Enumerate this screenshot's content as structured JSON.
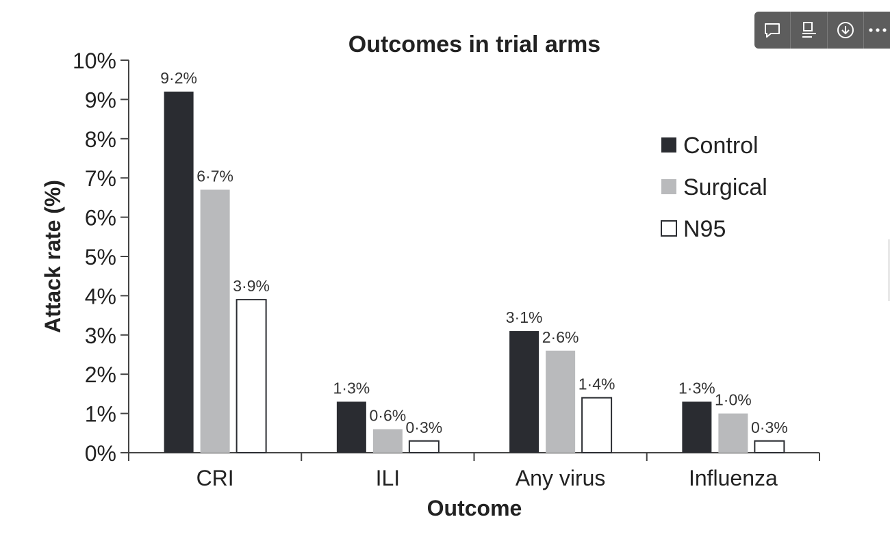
{
  "toolbar": {
    "buttons": [
      {
        "icon": "comment-icon"
      },
      {
        "icon": "caption-icon"
      },
      {
        "icon": "download-icon"
      },
      {
        "icon": "more-options-icon"
      }
    ]
  },
  "colors": {
    "control": "#2a2c31",
    "surgical": "#b9babc",
    "n95": "#ffffff",
    "axis": "#444444"
  },
  "chart_data": {
    "type": "bar",
    "title": "Outcomes in trial arms",
    "xlabel": "Outcome",
    "ylabel": "Attack rate (%)",
    "categories": [
      "CRI",
      "ILI",
      "Any virus",
      "Influenza"
    ],
    "series": [
      {
        "name": "Control",
        "values": [
          9.2,
          1.3,
          3.1,
          1.3
        ],
        "labels": [
          "9·2%",
          "1·3%",
          "3·1%",
          "1·3%"
        ],
        "color": "#2a2c31"
      },
      {
        "name": "Surgical",
        "values": [
          6.7,
          0.6,
          2.6,
          1.0
        ],
        "labels": [
          "6·7%",
          "0·6%",
          "2·6%",
          "1·0%"
        ],
        "color": "#b9babc"
      },
      {
        "name": "N95",
        "values": [
          3.9,
          0.3,
          1.4,
          0.3
        ],
        "labels": [
          "3·9%",
          "0·3%",
          "1·4%",
          "0·3%"
        ],
        "color": "#ffffff"
      }
    ],
    "ylim": [
      0,
      10
    ],
    "yticks": [
      "0%",
      "1%",
      "2%",
      "3%",
      "4%",
      "5%",
      "6%",
      "7%",
      "8%",
      "9%",
      "10%"
    ],
    "legend_position": "top-right",
    "grid": false
  }
}
